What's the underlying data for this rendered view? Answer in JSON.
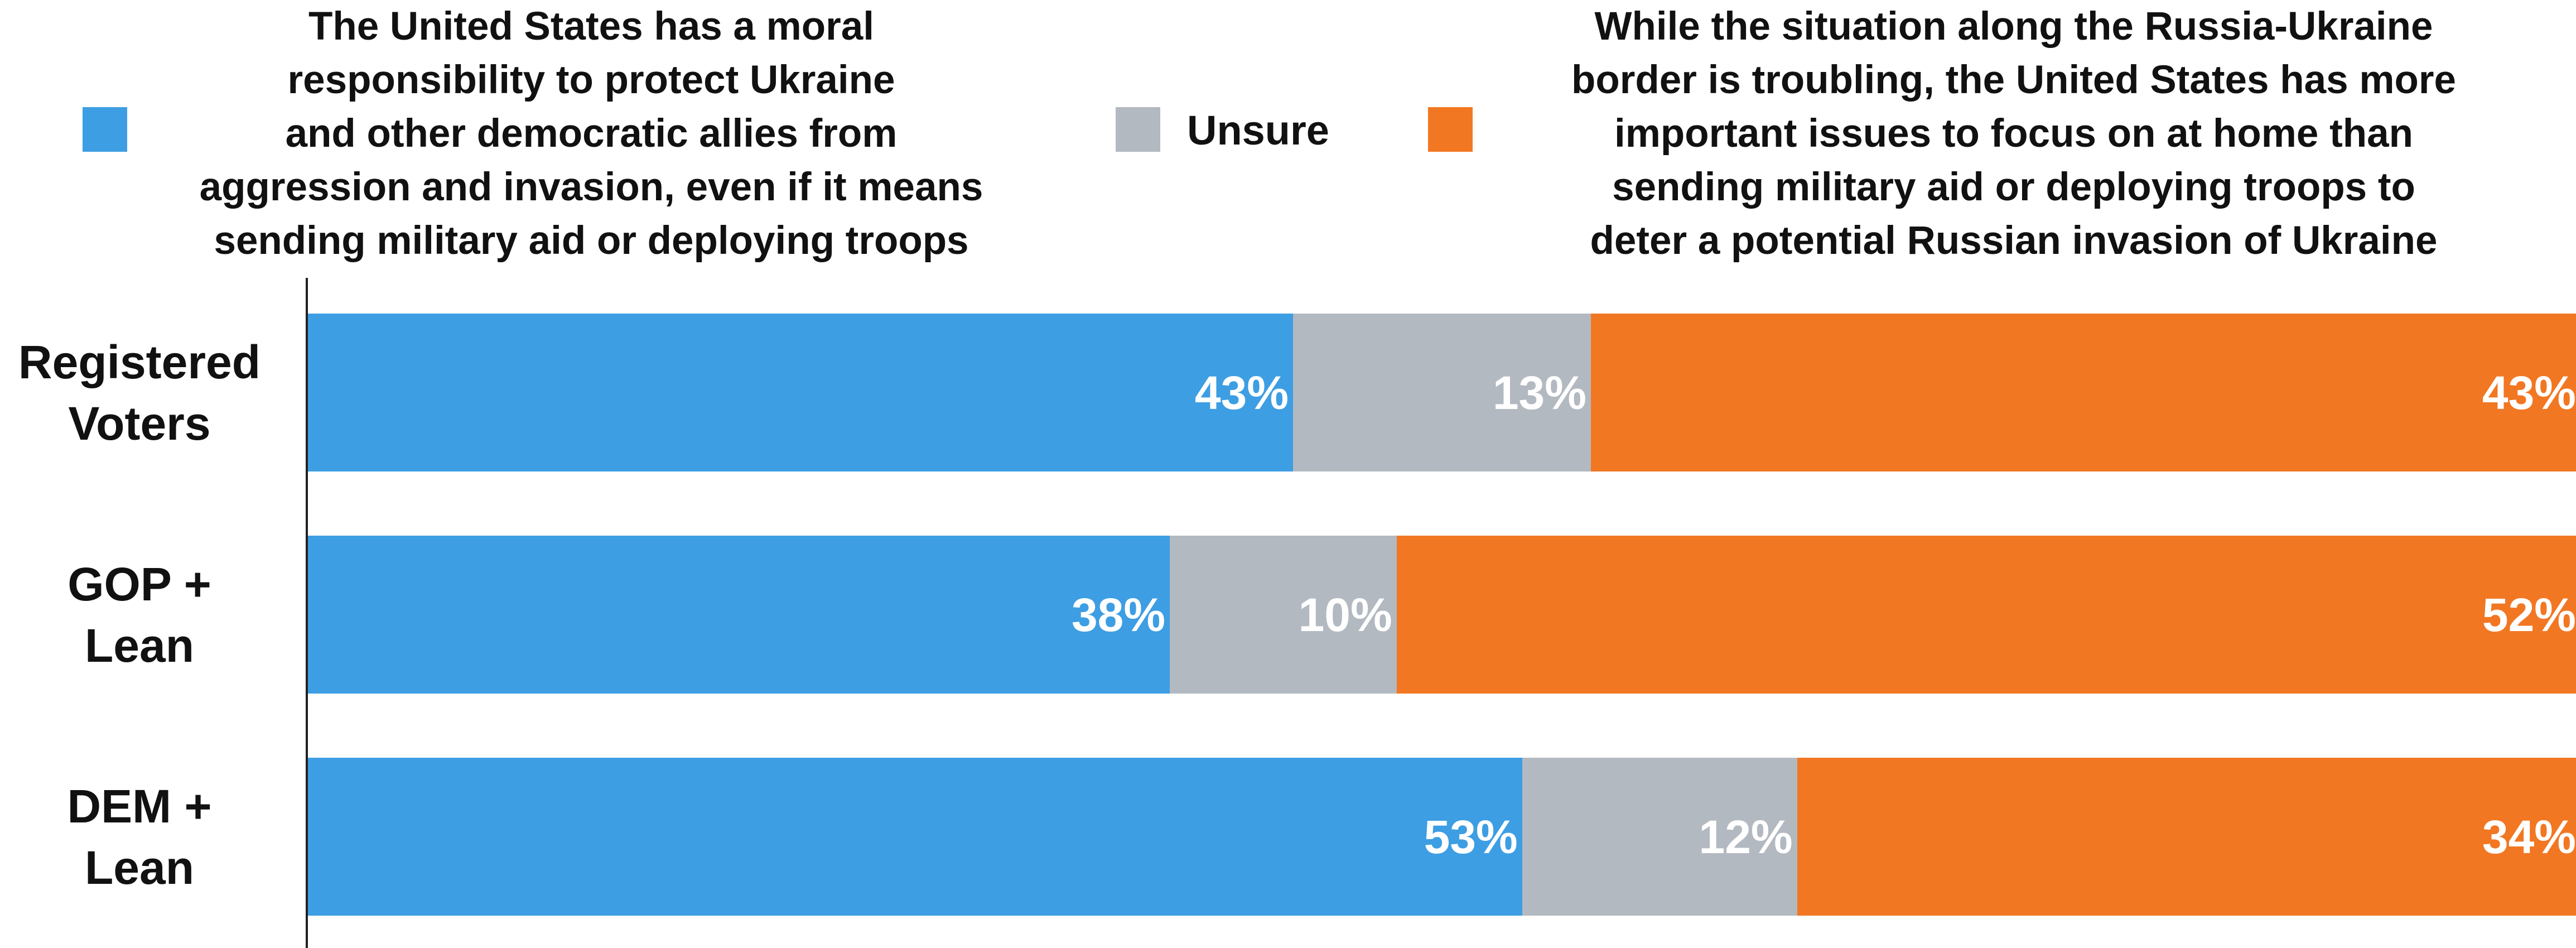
{
  "legend": [
    {
      "key": "support",
      "color": "#3d9ee3",
      "lines": [
        "The United States has a moral",
        "responsibility to protect Ukraine",
        "and other democratic allies from",
        "aggression and invasion, even if it means",
        "sending military aid or deploying troops"
      ]
    },
    {
      "key": "unsure",
      "color": "#b3b9c0",
      "lines": [
        "Unsure"
      ]
    },
    {
      "key": "home",
      "color": "#f27722",
      "lines": [
        "While the situation along the Russia-Ukraine",
        "border is troubling, the United States has more",
        "important issues to focus on at home than",
        "sending military aid or deploying troops to",
        "deter a potential Russian invasion of Ukraine"
      ]
    }
  ],
  "chart_data": {
    "type": "bar",
    "orientation": "horizontal",
    "stacked": true,
    "percent_stacked": true,
    "categories": [
      [
        "Registered",
        "Voters"
      ],
      [
        "GOP +",
        "Lean"
      ],
      [
        "DEM +",
        "Lean"
      ]
    ],
    "series": [
      {
        "name": "The United States has a moral responsibility to protect Ukraine and other democratic allies from aggression and invasion, even if it means sending military aid or deploying troops",
        "color": "#3d9ee3",
        "values": [
          43,
          38,
          53
        ],
        "labels": [
          "43%",
          "38%",
          "53%"
        ]
      },
      {
        "name": "Unsure",
        "color": "#b3b9c0",
        "values": [
          13,
          10,
          12
        ],
        "labels": [
          "13%",
          "10%",
          "12%"
        ]
      },
      {
        "name": "While the situation along the Russia-Ukraine border is troubling, the United States has more important issues to focus on at home than sending military aid or deploying troops to deter a potential Russian invasion of Ukraine",
        "color": "#f27722",
        "values": [
          43,
          52,
          34
        ],
        "labels": [
          "43%",
          "52%",
          "34%"
        ]
      }
    ],
    "legend_position": "top",
    "grid": false
  }
}
